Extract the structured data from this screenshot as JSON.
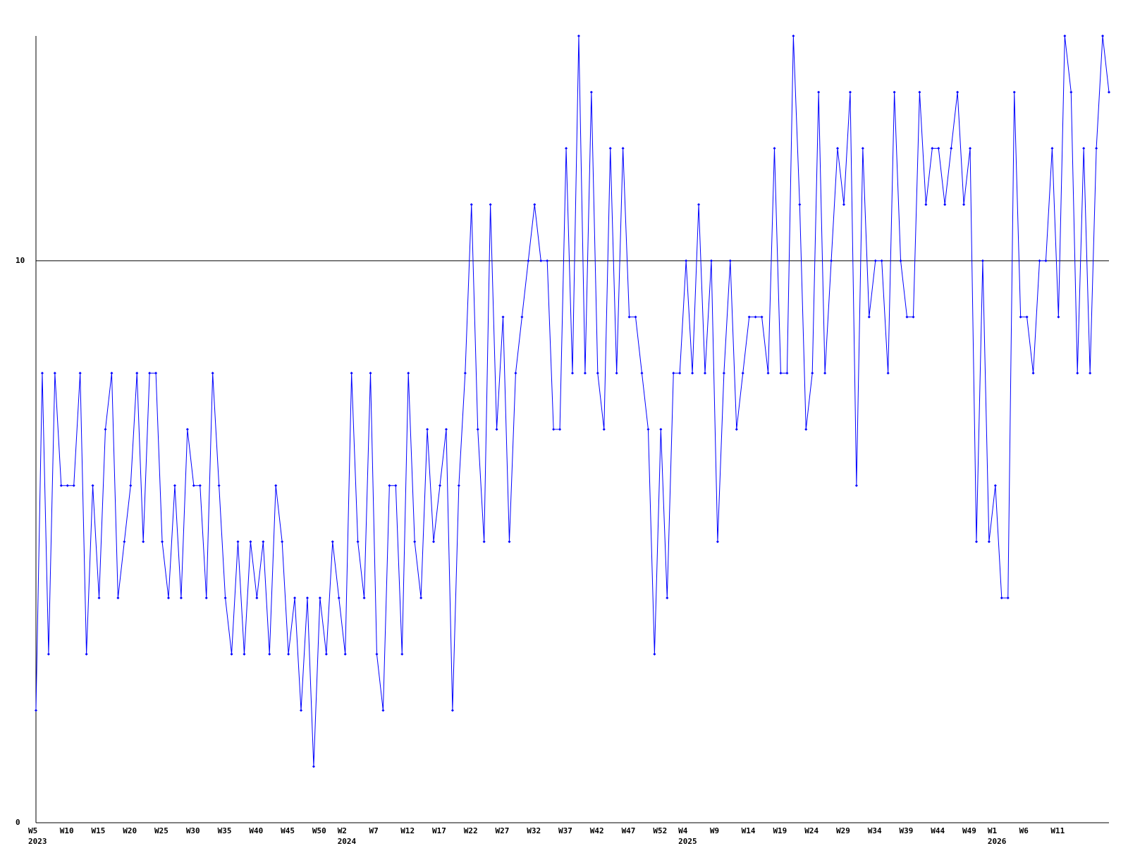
{
  "chart_data": {
    "type": "line",
    "color": "#0000ff",
    "axis_color": "#000000",
    "ylim": [
      0,
      14
    ],
    "yticks": [
      0,
      10
    ],
    "grid": true,
    "values": [
      2,
      8,
      3,
      8,
      6,
      6,
      6,
      8,
      3,
      6,
      4,
      7,
      8,
      4,
      5,
      6,
      8,
      5,
      8,
      8,
      5,
      4,
      6,
      4,
      7,
      6,
      6,
      4,
      8,
      6,
      4,
      3,
      5,
      3,
      5,
      4,
      5,
      3,
      6,
      5,
      3,
      4,
      2,
      4,
      1,
      4,
      3,
      5,
      4,
      3,
      8,
      5,
      4,
      8,
      3,
      2,
      6,
      6,
      3,
      8,
      5,
      4,
      7,
      5,
      6,
      7,
      2,
      6,
      8,
      11,
      7,
      5,
      11,
      7,
      9,
      5,
      8,
      9,
      10,
      11,
      10,
      10,
      7,
      7,
      12,
      8,
      14,
      8,
      13,
      8,
      7,
      12,
      8,
      12,
      9,
      9,
      8,
      7,
      3,
      7,
      4,
      8,
      8,
      10,
      8,
      11,
      8,
      10,
      5,
      8,
      10,
      7,
      8,
      9,
      9,
      9,
      8,
      12,
      8,
      8,
      14,
      11,
      7,
      8,
      13,
      8,
      10,
      12,
      11,
      13,
      6,
      12,
      9,
      10,
      10,
      8,
      13,
      10,
      9,
      9,
      13,
      11,
      12,
      12,
      11,
      12,
      13,
      11,
      12,
      5,
      10,
      5,
      6,
      4,
      4,
      13,
      9,
      9,
      8,
      10,
      10,
      12,
      9,
      14,
      13,
      8,
      12,
      8,
      12,
      14,
      13
    ],
    "categories": [
      "W5",
      null,
      null,
      null,
      null,
      "W10",
      null,
      null,
      null,
      null,
      "W15",
      null,
      null,
      null,
      null,
      "W20",
      null,
      null,
      null,
      null,
      "W25",
      null,
      null,
      null,
      null,
      "W30",
      null,
      null,
      null,
      null,
      "W35",
      null,
      null,
      null,
      null,
      "W40",
      null,
      null,
      null,
      null,
      "W45",
      null,
      null,
      null,
      null,
      "W50",
      null,
      null,
      null,
      "W2",
      null,
      null,
      null,
      null,
      "W7",
      null,
      null,
      null,
      null,
      "W12",
      null,
      null,
      null,
      null,
      "W17",
      null,
      null,
      null,
      null,
      "W22",
      null,
      null,
      null,
      null,
      "W27",
      null,
      null,
      null,
      null,
      "W32",
      null,
      null,
      null,
      null,
      "W37",
      null,
      null,
      null,
      null,
      "W42",
      null,
      null,
      null,
      null,
      "W47",
      null,
      null,
      null,
      null,
      "W52",
      null,
      null,
      null,
      "W4",
      null,
      null,
      null,
      null,
      "W9",
      null,
      null,
      null,
      null,
      "W14",
      null,
      null,
      null,
      null,
      "W19",
      null,
      null,
      null,
      null,
      "W24",
      null,
      null,
      null,
      null,
      "W29",
      null,
      null,
      null,
      null,
      "W34",
      null,
      null,
      null,
      null,
      "W39",
      null,
      null,
      null,
      null,
      "W44",
      null,
      null,
      null,
      null,
      "W49",
      null,
      null,
      null,
      "W1",
      null,
      null,
      null,
      null,
      "W6",
      null,
      null,
      null,
      null,
      "W11",
      null,
      null,
      null,
      null,
      null,
      null,
      null,
      null
    ],
    "category_years": [
      "2023",
      null,
      null,
      null,
      null,
      null,
      null,
      null,
      null,
      null,
      null,
      null,
      null,
      null,
      null,
      null,
      null,
      null,
      null,
      null,
      null,
      null,
      null,
      null,
      null,
      null,
      null,
      null,
      null,
      null,
      null,
      null,
      null,
      null,
      null,
      null,
      null,
      null,
      null,
      null,
      null,
      null,
      null,
      null,
      null,
      null,
      null,
      null,
      null,
      "2024",
      null,
      null,
      null,
      null,
      null,
      null,
      null,
      null,
      null,
      null,
      null,
      null,
      null,
      null,
      null,
      null,
      null,
      null,
      null,
      null,
      null,
      null,
      null,
      null,
      null,
      null,
      null,
      null,
      null,
      null,
      null,
      null,
      null,
      null,
      null,
      null,
      null,
      null,
      null,
      null,
      null,
      null,
      null,
      null,
      null,
      null,
      null,
      null,
      null,
      null,
      null,
      null,
      null,
      "2025",
      null,
      null,
      null,
      null,
      null,
      null,
      null,
      null,
      null,
      null,
      null,
      null,
      null,
      null,
      null,
      null,
      null,
      null,
      null,
      null,
      null,
      null,
      null,
      null,
      null,
      null,
      null,
      null,
      null,
      null,
      null,
      null,
      null,
      null,
      null,
      null,
      null,
      null,
      null,
      null,
      null,
      null,
      null,
      null,
      null,
      null,
      null,
      null,
      "2026",
      null,
      null,
      null,
      null,
      null,
      null,
      null,
      null,
      null,
      null,
      null,
      null,
      null,
      null,
      null,
      null,
      null,
      null
    ]
  }
}
